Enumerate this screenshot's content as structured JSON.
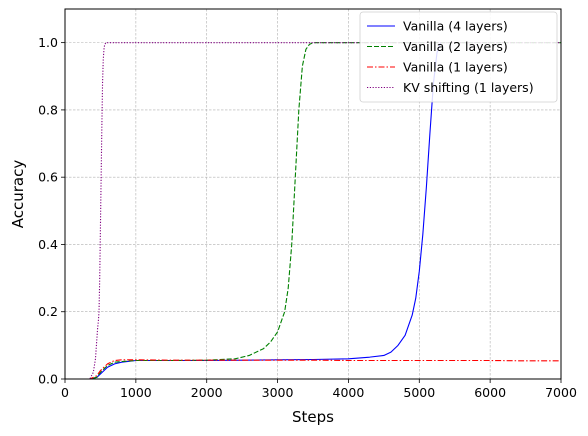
{
  "chart_data": {
    "type": "line",
    "title": "",
    "xlabel": "Steps",
    "ylabel": "Accuracy",
    "xlim": [
      0,
      7000
    ],
    "ylim": [
      0,
      1.1
    ],
    "xticks": [
      0,
      1000,
      2000,
      3000,
      4000,
      5000,
      6000,
      7000
    ],
    "yticks": [
      0.0,
      0.2,
      0.4,
      0.6,
      0.8,
      1.0
    ],
    "xtick_labels": [
      "0",
      "1000",
      "2000",
      "3000",
      "4000",
      "5000",
      "6000",
      "7000"
    ],
    "ytick_labels": [
      "0.0",
      "0.2",
      "0.4",
      "0.6",
      "0.8",
      "1.0"
    ],
    "grid": true,
    "legend_position": "top-right",
    "series": [
      {
        "name": "Vanilla (4 layers)",
        "color": "#0000ff",
        "style": "solid",
        "x": [
          0,
          350,
          450,
          500,
          550,
          600,
          700,
          800,
          1000,
          1500,
          2000,
          2500,
          3000,
          3500,
          4000,
          4300,
          4500,
          4600,
          4700,
          4800,
          4900,
          4950,
          5000,
          5050,
          5100,
          5150,
          5200,
          5250,
          5300
        ],
        "y": [
          0.0,
          0.0,
          0.005,
          0.015,
          0.025,
          0.035,
          0.045,
          0.05,
          0.055,
          0.055,
          0.055,
          0.056,
          0.057,
          0.058,
          0.06,
          0.065,
          0.07,
          0.08,
          0.1,
          0.13,
          0.19,
          0.24,
          0.32,
          0.43,
          0.57,
          0.73,
          0.88,
          0.97,
          1.0
        ]
      },
      {
        "name": "Vanilla (2 layers)",
        "color": "#008000",
        "style": "dashed",
        "x": [
          0,
          350,
          450,
          500,
          550,
          600,
          700,
          800,
          1000,
          1500,
          2000,
          2400,
          2600,
          2800,
          2900,
          3000,
          3100,
          3150,
          3200,
          3250,
          3300,
          3350,
          3400,
          3450,
          3500,
          3600,
          3800,
          4000,
          7000
        ],
        "y": [
          0.0,
          0.0,
          0.005,
          0.02,
          0.03,
          0.04,
          0.05,
          0.052,
          0.055,
          0.055,
          0.056,
          0.06,
          0.07,
          0.09,
          0.11,
          0.14,
          0.2,
          0.27,
          0.4,
          0.6,
          0.8,
          0.93,
          0.98,
          0.995,
          1.0,
          1.0,
          1.0,
          1.0,
          1.0
        ]
      },
      {
        "name": "Vanilla (1 layers)",
        "color": "#ff0000",
        "style": "dashdot",
        "x": [
          0,
          350,
          450,
          500,
          550,
          600,
          700,
          800,
          1000,
          1500,
          2000,
          2500,
          3000,
          3500,
          4000,
          4500,
          5000,
          5500,
          6000,
          6500,
          7000
        ],
        "y": [
          0.0,
          0.0,
          0.01,
          0.025,
          0.035,
          0.045,
          0.055,
          0.057,
          0.057,
          0.056,
          0.056,
          0.056,
          0.056,
          0.056,
          0.055,
          0.055,
          0.055,
          0.055,
          0.055,
          0.054,
          0.054
        ]
      },
      {
        "name": "KV shifting (1 layers)",
        "color": "#800080",
        "style": "dotted",
        "x": [
          0,
          350,
          400,
          430,
          460,
          470,
          480,
          490,
          500,
          510,
          520,
          530,
          540,
          550,
          560,
          580,
          600,
          1000,
          2000,
          3000,
          4000,
          5000,
          6000,
          7000
        ],
        "y": [
          0.0,
          0.0,
          0.02,
          0.06,
          0.15,
          0.17,
          0.2,
          0.3,
          0.45,
          0.6,
          0.75,
          0.88,
          0.95,
          0.98,
          0.995,
          1.0,
          1.0,
          1.0,
          1.0,
          1.0,
          1.0,
          1.0,
          1.0,
          1.0
        ]
      }
    ]
  }
}
